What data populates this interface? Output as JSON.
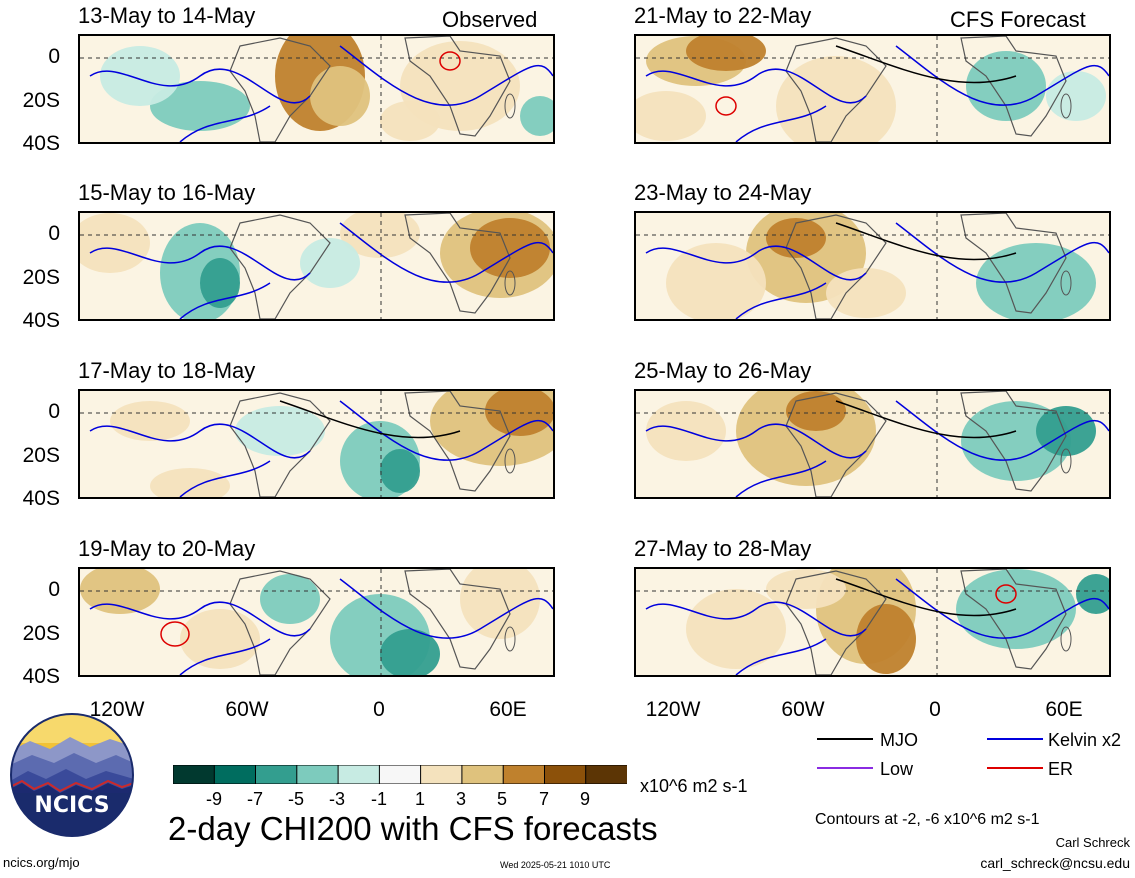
{
  "headers": {
    "left": "Observed",
    "right": "CFS Forecast"
  },
  "panels_left": [
    {
      "title": "13-May to 14-May"
    },
    {
      "title": "15-May to 16-May"
    },
    {
      "title": "17-May to 18-May"
    },
    {
      "title": "19-May to 20-May"
    }
  ],
  "panels_right": [
    {
      "title": "21-May to 22-May"
    },
    {
      "title": "23-May to 24-May"
    },
    {
      "title": "25-May to 26-May"
    },
    {
      "title": "27-May to 28-May"
    }
  ],
  "axes": {
    "y_ticks": [
      "0",
      "20S",
      "40S"
    ],
    "x_ticks": [
      "120W",
      "60W",
      "0",
      "60E"
    ]
  },
  "legend": {
    "mjo": "MJO",
    "kelvin": "Kelvin x2",
    "low": "Low",
    "er": "ER",
    "colors": {
      "mjo": "#000000",
      "kelvin": "#0000dd",
      "low": "#8a2be2",
      "er": "#dd0000"
    }
  },
  "colorbar": {
    "labels": [
      "-9",
      "-7",
      "-5",
      "-3",
      "-1",
      "1",
      "3",
      "5",
      "7",
      "9"
    ],
    "units": "x10^6 m2 s-1",
    "colors": [
      "#01392f",
      "#006d5f",
      "#339e8f",
      "#7dcbbd",
      "#c7ebe3",
      "#f7f7f7",
      "#f4e2bd",
      "#dfc27d",
      "#bf812d",
      "#8c510a",
      "#5c3505"
    ]
  },
  "main_title": "2-day CHI200 with CFS forecasts",
  "contours_note": "Contours at -2, -6 x10^6 m2 s-1",
  "author": "Carl Schreck",
  "email": "carl_schreck@ncsu.edu",
  "site": "ncics.org/mjo",
  "timestamp": "Wed 2025-05-21 1010 UTC",
  "logo_text": "NCICS"
}
